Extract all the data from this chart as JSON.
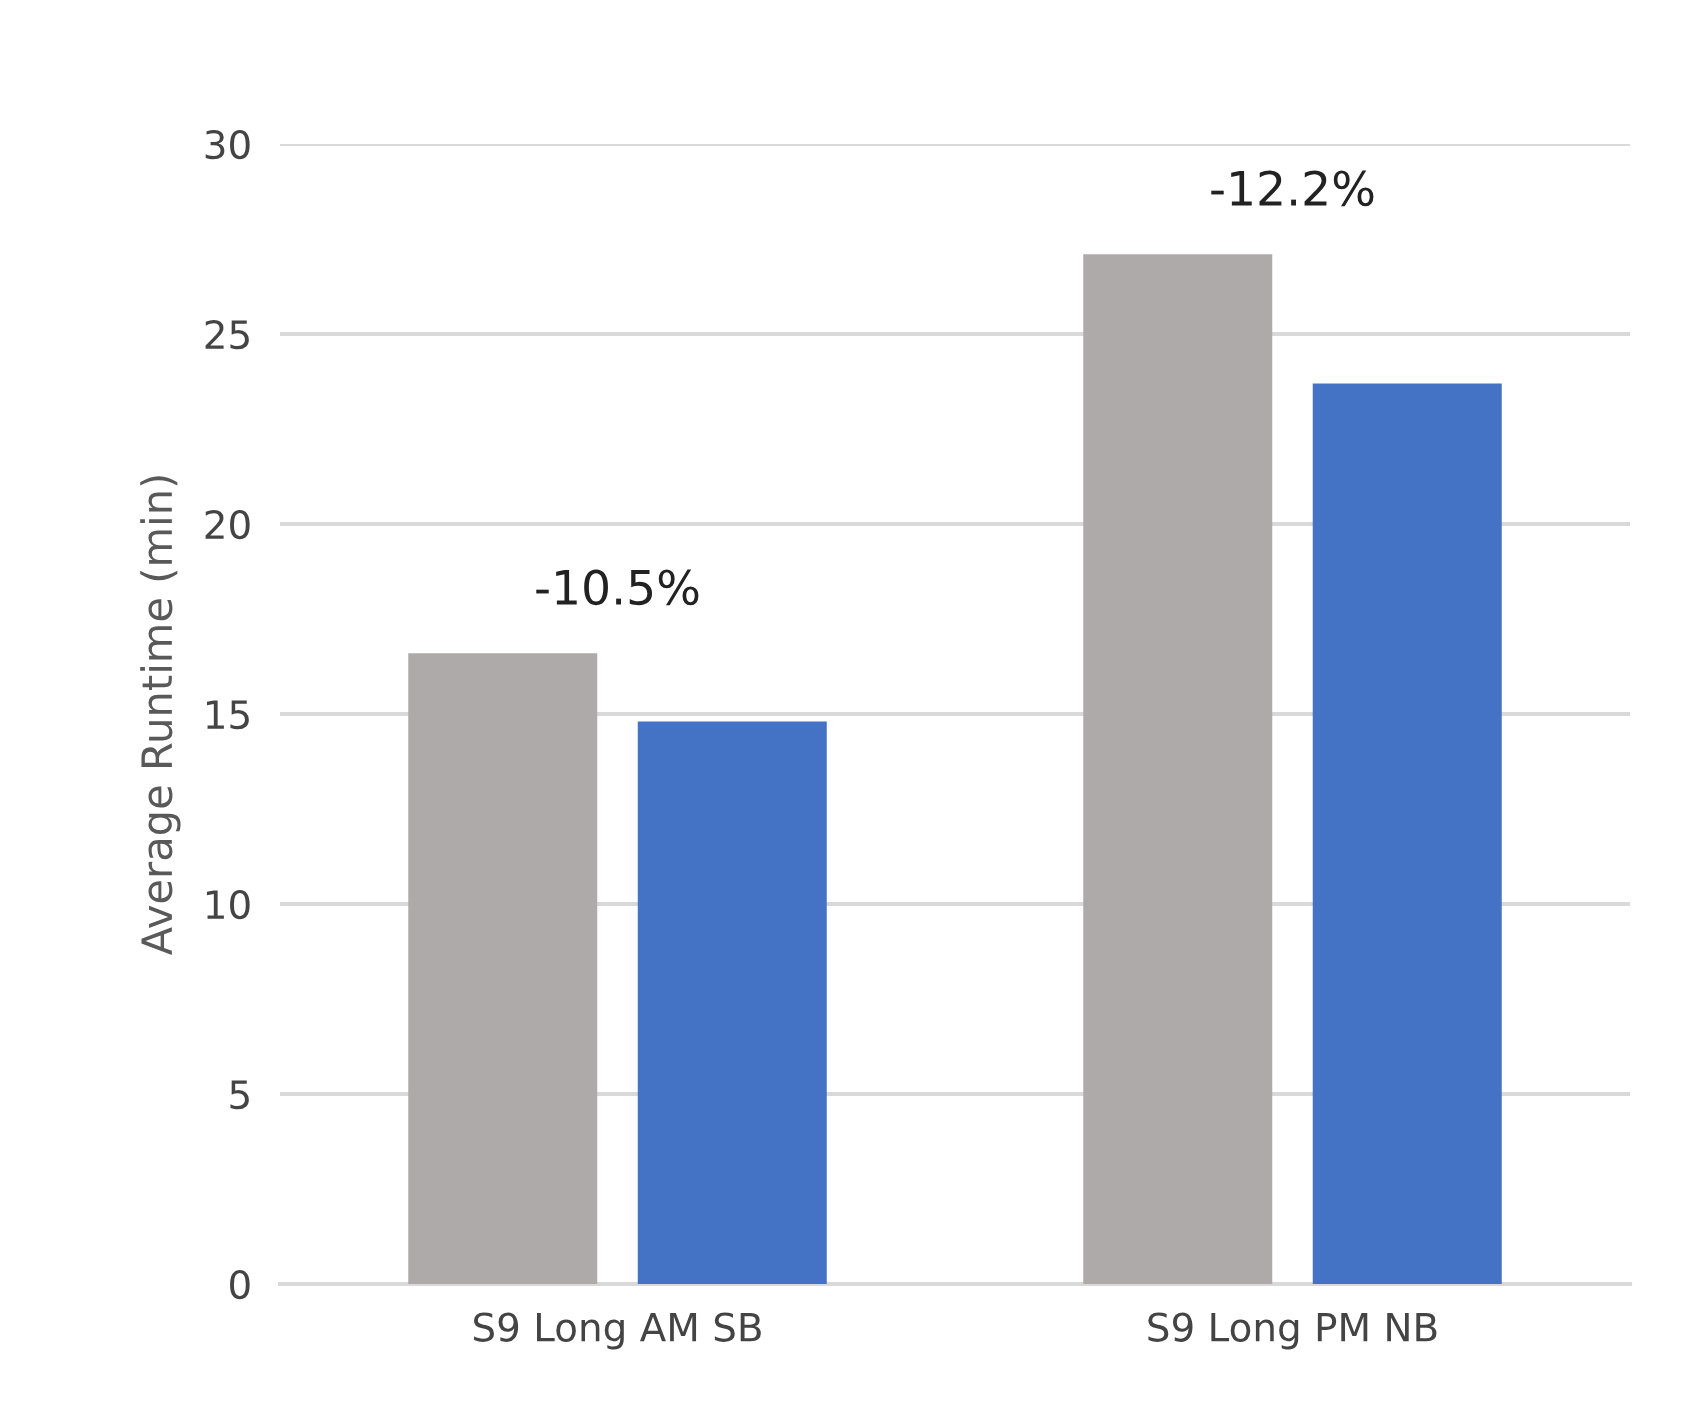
{
  "chart_data": {
    "type": "bar",
    "ylabel": "Average Runtime (min)",
    "categories": [
      "S9 Long AM SB",
      "S9 Long PM NB"
    ],
    "series": [
      {
        "color": "#aeaaaa",
        "values": [
          16.6,
          27.1
        ]
      },
      {
        "color": "#4472c4",
        "values": [
          14.8,
          23.7
        ]
      }
    ],
    "ylim": [
      0,
      30
    ],
    "yticks": [
      0,
      5,
      10,
      15,
      20,
      25,
      30
    ],
    "grid": "y",
    "legend": false,
    "annotations": [
      "-10.5%",
      "-12.2%"
    ]
  }
}
